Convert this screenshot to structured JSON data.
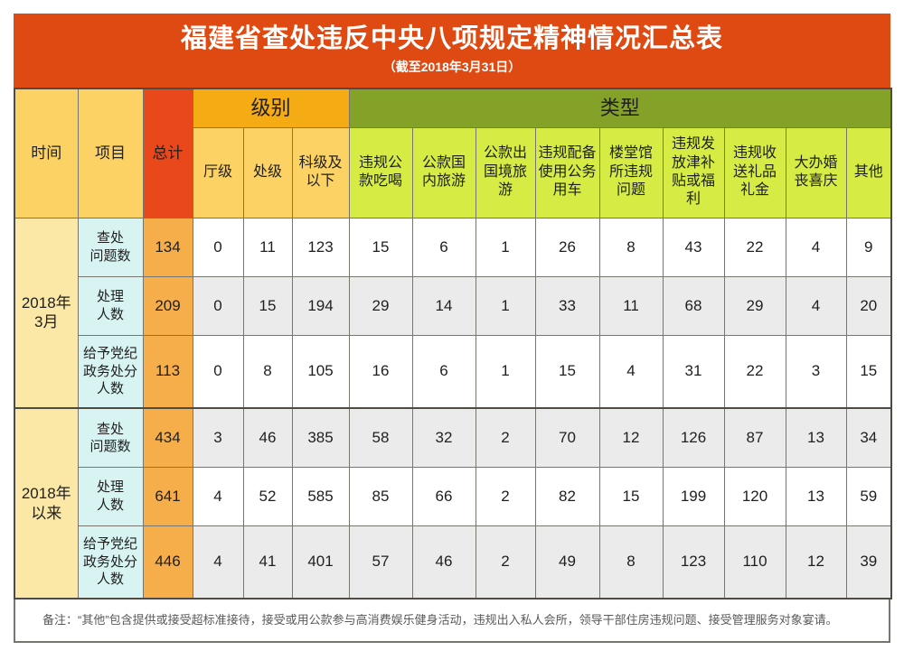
{
  "colors": {
    "banner_red": "#DE4A11",
    "total_red": "#E8481A",
    "gold_header": "#FBD263",
    "amber_header": "#F4AB14",
    "olive_header": "#84A227",
    "lime_header": "#D6EC45",
    "period_cell": "#FBE7A6",
    "item_cell": "#D7F3F2",
    "total_cell": "#F6AE4A",
    "stripe_gray": "#EBEBEB",
    "border_dark": "#4E4B42",
    "border_mid": "#76756E",
    "note_text": "#595959"
  },
  "chart_data": {
    "type": "table",
    "title": "福建省查处违反中央八项规定精神情况汇总表",
    "subtitle": "（截至2018年3月31日）",
    "corner_headers": {
      "time": "时间",
      "item": "项目",
      "total": "总计"
    },
    "group_headers": {
      "level": "级别",
      "type": "类型"
    },
    "level_columns": [
      "厅级",
      "处级",
      "科级及以下"
    ],
    "type_columns": [
      "违规公款吃喝",
      "公款国内旅游",
      "公款出国境旅游",
      "违规配备使用公务用车",
      "楼堂馆所违规问题",
      "违规发放津补贴或福利",
      "违规收送礼品礼金",
      "大办婚丧喜庆",
      "其他"
    ],
    "row_groups": [
      {
        "period": "2018年3月",
        "period_lines": [
          "2018年",
          "3月"
        ],
        "rows": [
          {
            "label": "查处问题数",
            "label_lines": [
              "查处",
              "问题数"
            ],
            "total": 134,
            "values": [
              0,
              11,
              123,
              15,
              6,
              1,
              26,
              8,
              43,
              22,
              4,
              9
            ]
          },
          {
            "label": "处理人数",
            "label_lines": [
              "处理",
              "人数"
            ],
            "total": 209,
            "values": [
              0,
              15,
              194,
              29,
              14,
              1,
              33,
              11,
              68,
              29,
              4,
              20
            ]
          },
          {
            "label": "给予党纪政务处分人数",
            "label_lines": [
              "给予党纪",
              "政务处分",
              "人数"
            ],
            "total": 113,
            "values": [
              0,
              8,
              105,
              16,
              6,
              1,
              15,
              4,
              31,
              22,
              3,
              15
            ]
          }
        ]
      },
      {
        "period": "2018年以来",
        "period_lines": [
          "2018年",
          "以来"
        ],
        "rows": [
          {
            "label": "查处问题数",
            "label_lines": [
              "查处",
              "问题数"
            ],
            "total": 434,
            "values": [
              3,
              46,
              385,
              58,
              32,
              2,
              70,
              12,
              126,
              87,
              13,
              34
            ]
          },
          {
            "label": "处理人数",
            "label_lines": [
              "处理",
              "人数"
            ],
            "total": 641,
            "values": [
              4,
              52,
              585,
              85,
              66,
              2,
              82,
              15,
              199,
              120,
              13,
              59
            ]
          },
          {
            "label": "给予党纪政务处分人数",
            "label_lines": [
              "给予党纪",
              "政务处分",
              "人数"
            ],
            "total": 446,
            "values": [
              4,
              41,
              401,
              57,
              46,
              2,
              49,
              8,
              123,
              110,
              12,
              39
            ]
          }
        ]
      }
    ],
    "note": "备注：“其他”包含提供或接受超标准接待，接受或用公款参与高消费娱乐健身活动，违规出入私人会所，领导干部住房违规问题、接受管理服务对象宴请。"
  }
}
